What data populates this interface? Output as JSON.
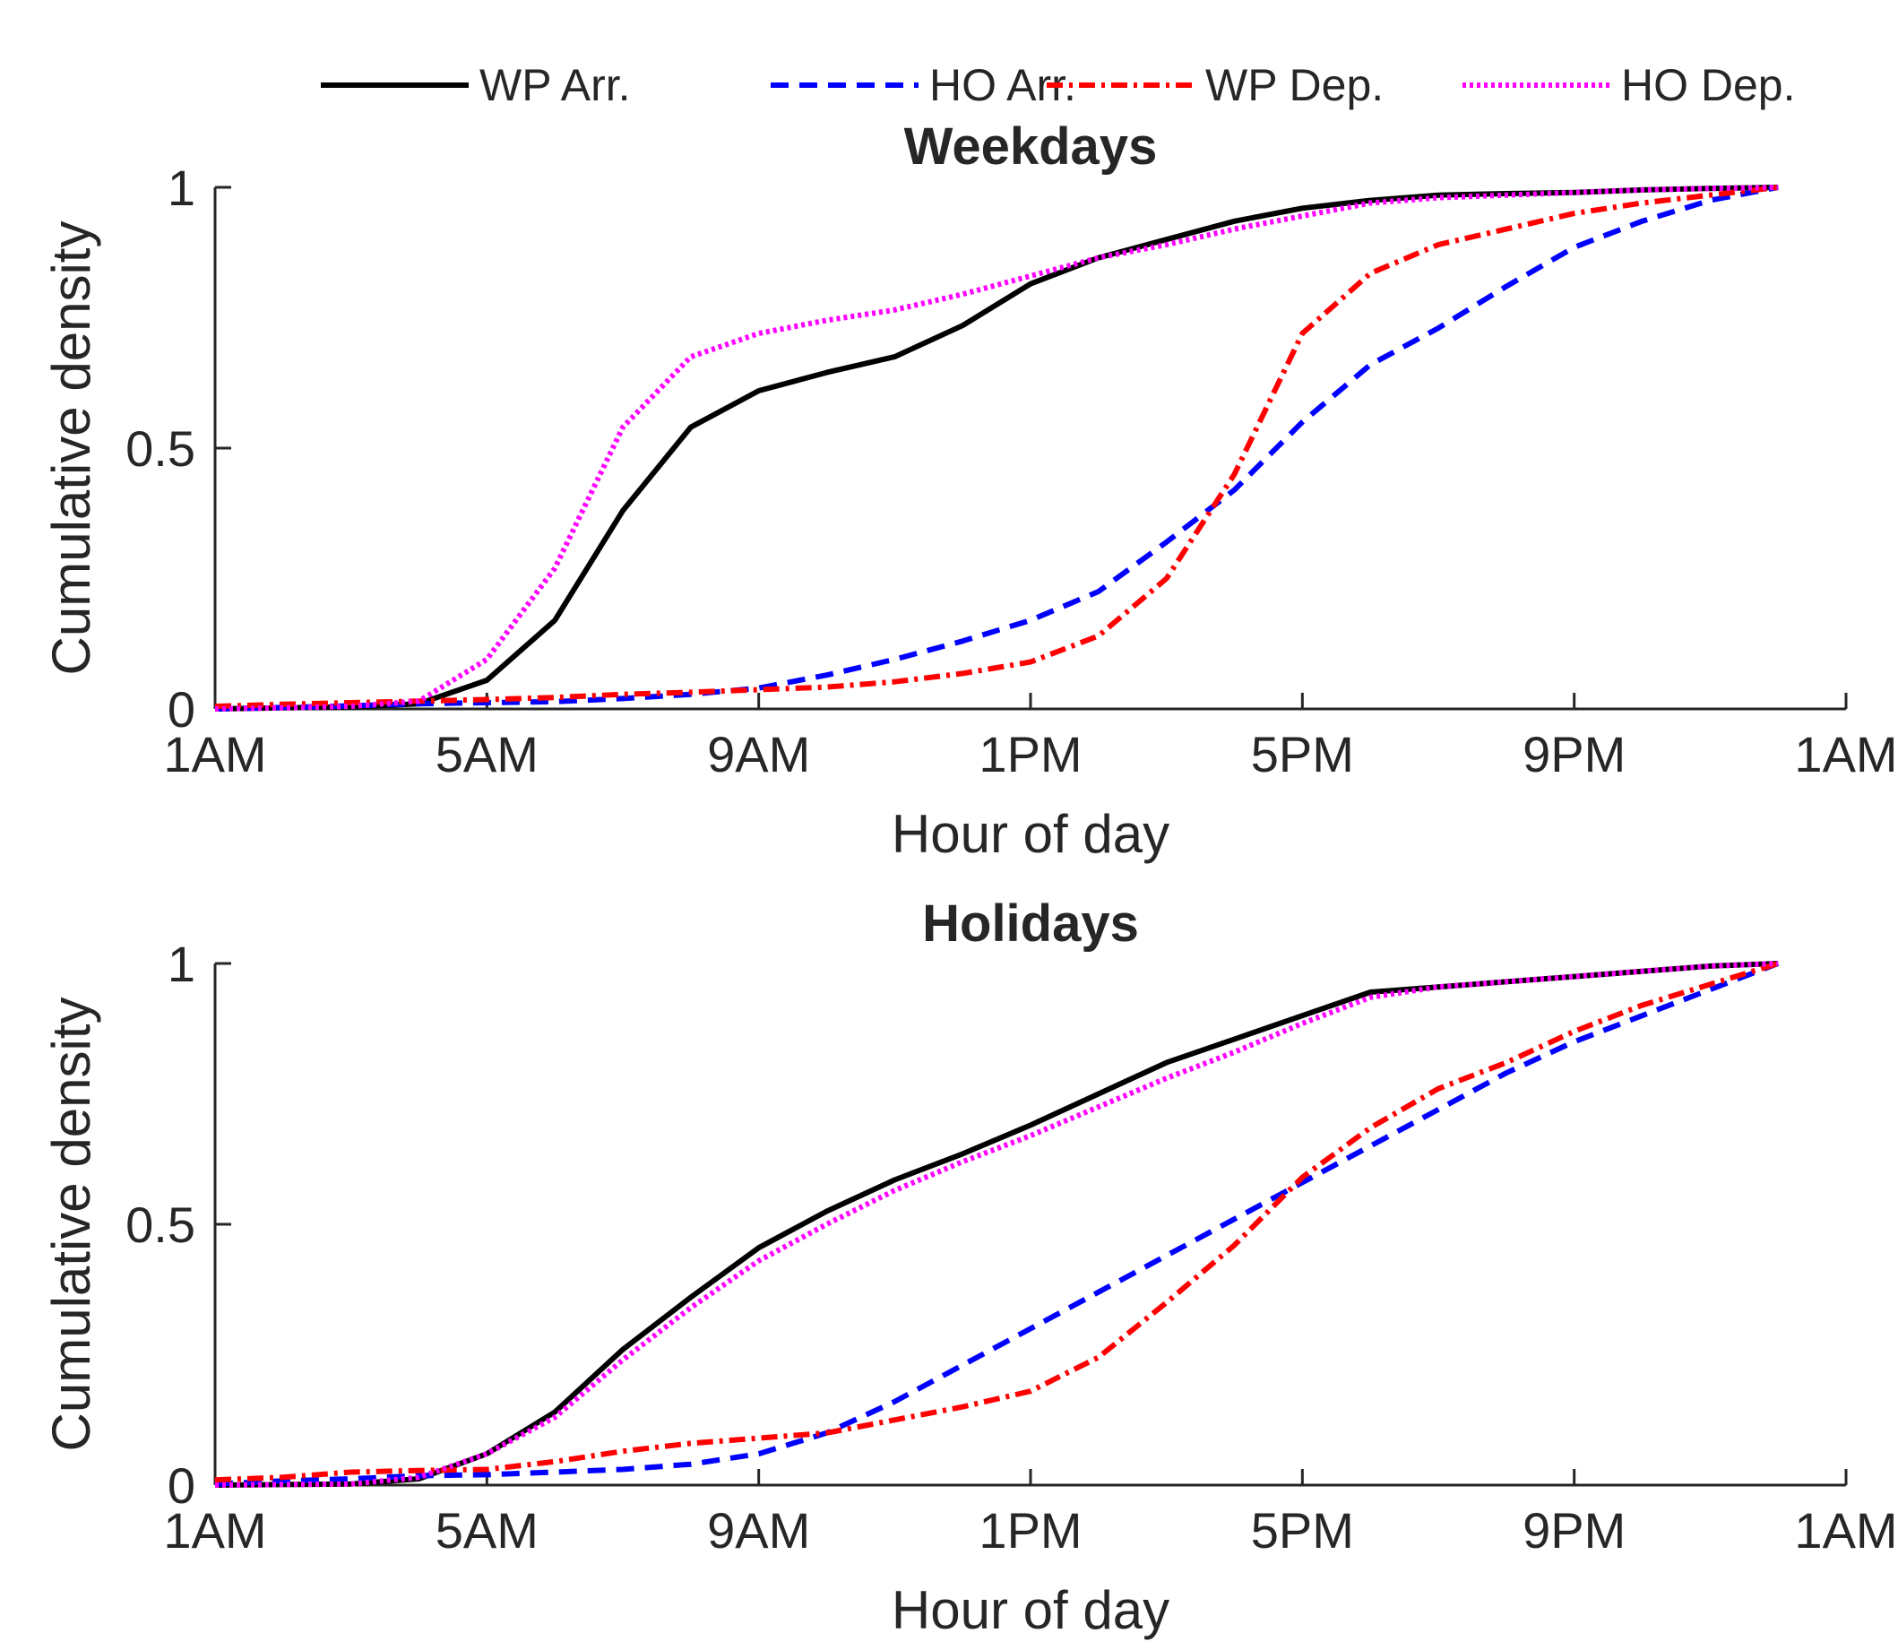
{
  "legend": {
    "entries": [
      {
        "label": "WP Arr.",
        "color": "#000000",
        "style": "solid"
      },
      {
        "label": "HO Arr.",
        "color": "#0000ff",
        "style": "dashed"
      },
      {
        "label": "WP Dep.",
        "color": "#ff0000",
        "style": "dashdot"
      },
      {
        "label": "HO Dep.",
        "color": "#ff00ff",
        "style": "dotted"
      }
    ]
  },
  "chart_data": [
    {
      "type": "line",
      "title": "Weekdays",
      "xlabel": "Hour of day",
      "ylabel": "Cumulative density",
      "xlim": [
        0,
        24
      ],
      "ylim": [
        0,
        1
      ],
      "xticks": [
        0,
        4,
        8,
        12,
        16,
        20,
        24
      ],
      "xtick_labels": [
        "1AM",
        "5AM",
        "9AM",
        "1PM",
        "5PM",
        "9PM",
        "1AM"
      ],
      "yticks": [
        0,
        0.5,
        1
      ],
      "ytick_labels": [
        "0",
        "0.5",
        "1"
      ],
      "x": [
        0,
        1,
        2,
        3,
        4,
        5,
        6,
        7,
        8,
        9,
        10,
        11,
        12,
        13,
        14,
        15,
        16,
        17,
        18,
        19,
        20,
        21,
        22,
        23
      ],
      "series": [
        {
          "name": "WP Arr.",
          "values": [
            0.0,
            0.002,
            0.004,
            0.01,
            0.055,
            0.17,
            0.38,
            0.54,
            0.61,
            0.645,
            0.675,
            0.735,
            0.815,
            0.865,
            0.9,
            0.935,
            0.96,
            0.975,
            0.985,
            0.988,
            0.99,
            0.995,
            0.998,
            1.0
          ]
        },
        {
          "name": "HO Arr.",
          "values": [
            0.0,
            0.003,
            0.006,
            0.01,
            0.012,
            0.014,
            0.02,
            0.028,
            0.04,
            0.065,
            0.095,
            0.13,
            0.17,
            0.225,
            0.32,
            0.42,
            0.55,
            0.66,
            0.73,
            0.81,
            0.885,
            0.935,
            0.975,
            1.0
          ]
        },
        {
          "name": "WP Dep.",
          "values": [
            0.005,
            0.009,
            0.012,
            0.015,
            0.018,
            0.022,
            0.028,
            0.032,
            0.037,
            0.042,
            0.052,
            0.068,
            0.09,
            0.14,
            0.25,
            0.45,
            0.72,
            0.835,
            0.89,
            0.92,
            0.95,
            0.97,
            0.985,
            1.0
          ]
        },
        {
          "name": "HO Dep.",
          "values": [
            0.0,
            0.002,
            0.005,
            0.015,
            0.095,
            0.27,
            0.54,
            0.675,
            0.72,
            0.745,
            0.765,
            0.795,
            0.83,
            0.865,
            0.89,
            0.92,
            0.945,
            0.97,
            0.98,
            0.985,
            0.99,
            0.995,
            0.998,
            1.0
          ]
        }
      ]
    },
    {
      "type": "line",
      "title": "Holidays",
      "xlabel": "Hour of day",
      "ylabel": "Cumulative density",
      "xlim": [
        0,
        24
      ],
      "ylim": [
        0,
        1
      ],
      "xticks": [
        0,
        4,
        8,
        12,
        16,
        20,
        24
      ],
      "xtick_labels": [
        "1AM",
        "5AM",
        "9AM",
        "1PM",
        "5PM",
        "9PM",
        "1AM"
      ],
      "yticks": [
        0,
        0.5,
        1
      ],
      "ytick_labels": [
        "0",
        "0.5",
        "1"
      ],
      "x": [
        0,
        1,
        2,
        3,
        4,
        5,
        6,
        7,
        8,
        9,
        10,
        11,
        12,
        13,
        14,
        15,
        16,
        17,
        18,
        19,
        20,
        21,
        22,
        23
      ],
      "series": [
        {
          "name": "WP Arr.",
          "values": [
            0.0,
            0.001,
            0.002,
            0.012,
            0.06,
            0.14,
            0.26,
            0.36,
            0.455,
            0.525,
            0.585,
            0.635,
            0.69,
            0.75,
            0.81,
            0.855,
            0.9,
            0.945,
            0.955,
            0.965,
            0.975,
            0.985,
            0.995,
            1.0
          ]
        },
        {
          "name": "HO Arr.",
          "values": [
            0.002,
            0.008,
            0.012,
            0.018,
            0.02,
            0.025,
            0.03,
            0.04,
            0.06,
            0.1,
            0.16,
            0.23,
            0.3,
            0.37,
            0.44,
            0.51,
            0.58,
            0.65,
            0.72,
            0.79,
            0.85,
            0.9,
            0.95,
            1.0
          ]
        },
        {
          "name": "WP Dep.",
          "values": [
            0.01,
            0.015,
            0.025,
            0.028,
            0.03,
            0.045,
            0.065,
            0.08,
            0.09,
            0.1,
            0.125,
            0.15,
            0.18,
            0.245,
            0.35,
            0.46,
            0.59,
            0.685,
            0.76,
            0.81,
            0.87,
            0.92,
            0.96,
            1.0
          ]
        },
        {
          "name": "HO Dep.",
          "values": [
            0.0,
            0.001,
            0.002,
            0.015,
            0.06,
            0.13,
            0.24,
            0.34,
            0.43,
            0.5,
            0.565,
            0.62,
            0.67,
            0.725,
            0.78,
            0.83,
            0.885,
            0.935,
            0.955,
            0.965,
            0.975,
            0.985,
            0.995,
            1.0
          ]
        }
      ]
    }
  ]
}
